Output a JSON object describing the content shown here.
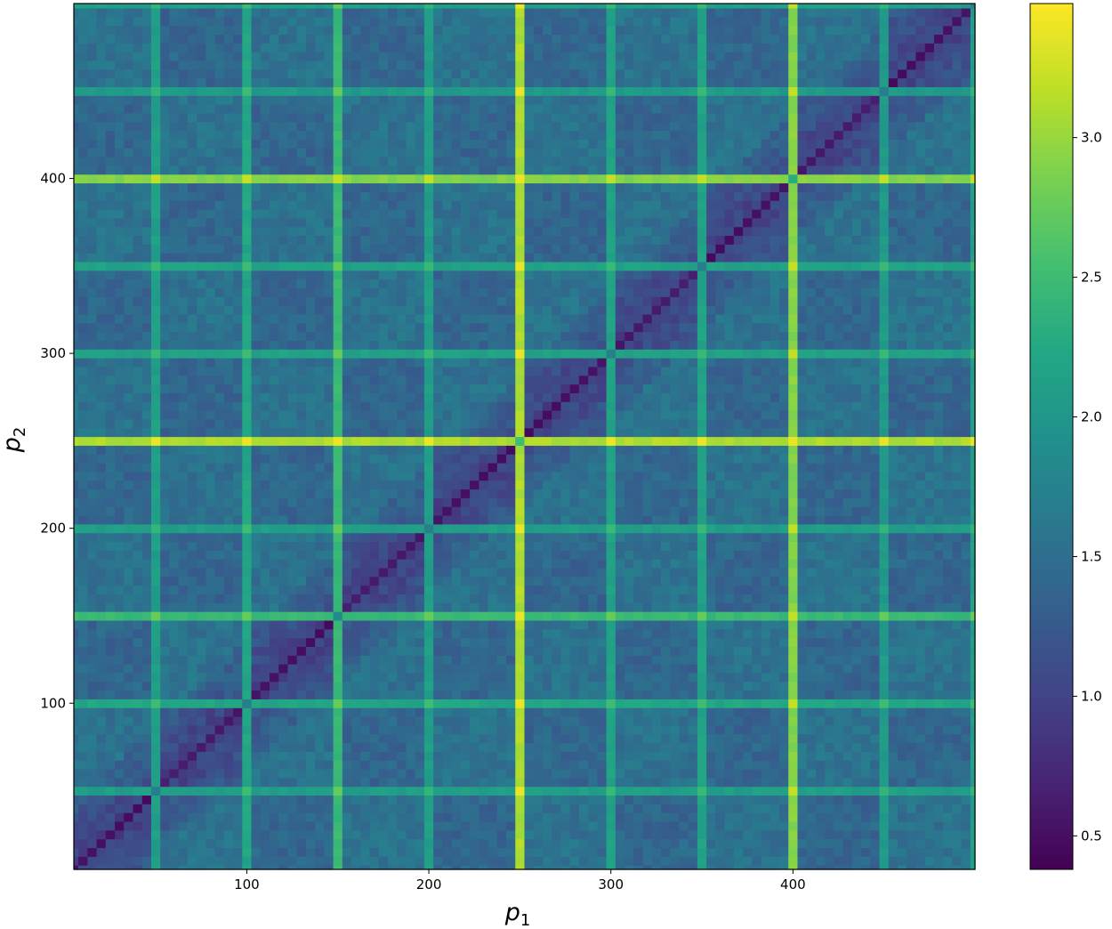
{
  "chart_data": {
    "type": "heatmap",
    "title": "",
    "xlabel": {
      "base": "p",
      "sub": "1"
    },
    "ylabel": {
      "base": "p",
      "sub": "2"
    },
    "xlim": [
      5,
      500
    ],
    "ylim": [
      5,
      500
    ],
    "x_ticks": [
      100,
      200,
      300,
      400
    ],
    "x_tick_labels": [
      "100",
      "200",
      "300",
      "400"
    ],
    "y_ticks": [
      100,
      200,
      300,
      400
    ],
    "y_tick_labels": [
      "100",
      "200",
      "300",
      "400"
    ],
    "grid": false,
    "cell_size": 5,
    "colormap": "viridis",
    "colorbar": {
      "vmin": 0.38,
      "vmax": 3.48,
      "ticks": [
        0.5,
        1.0,
        1.5,
        2.0,
        2.5,
        3.0
      ],
      "tick_labels": [
        "0.5",
        "1.0",
        "1.5",
        "2.0",
        "2.5",
        "3.0"
      ],
      "position": "right"
    },
    "structure": {
      "background_value": 1.55,
      "block_value": 1.1,
      "diagonal_value": 0.45,
      "bright_lines": [
        {
          "at": 250,
          "value": 3.1
        },
        {
          "at": 400,
          "value": 2.9
        },
        {
          "at": 150,
          "value": 2.45
        },
        {
          "at": 100,
          "value": 2.2
        },
        {
          "at": 50,
          "value": 2.1
        },
        {
          "at": 300,
          "value": 2.15
        },
        {
          "at": 350,
          "value": 2.15
        },
        {
          "at": 200,
          "value": 2.1
        },
        {
          "at": 450,
          "value": 2.05
        },
        {
          "at": 500,
          "value": 2.1
        }
      ],
      "peak_value": 3.45
    }
  }
}
